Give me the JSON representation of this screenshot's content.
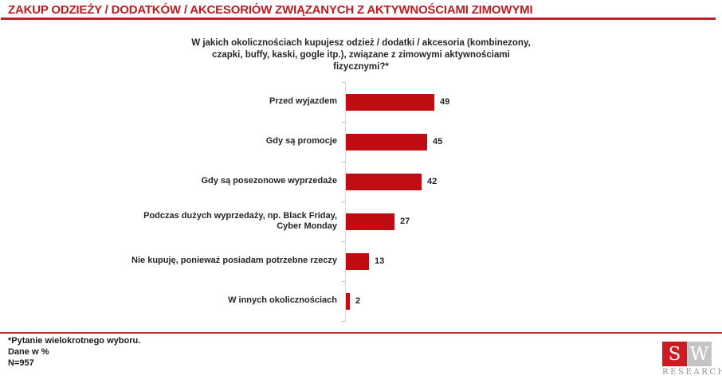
{
  "header": {
    "title": "ZAKUP ODZIEŻY / DODATKÓW / AKCESORIÓW ZWIĄZANYCH Z AKTYWNOŚCIAMI ZIMOWYMI",
    "accent_color": "#c11a21"
  },
  "question": {
    "text": "W jakich okolicznościach kupujesz odzież / dodatki / akcesoria (kombinezony, czapki, buffy, kaski, gogle itp.), związane z zimowymi aktywnościami fizycznymi?*"
  },
  "chart_data": {
    "type": "bar",
    "orientation": "horizontal",
    "title": "",
    "xlabel": "",
    "ylabel": "",
    "xlim": [
      0,
      55
    ],
    "grid": false,
    "legend": "none",
    "bar_color": "#c00c13",
    "axis_color": "#d9d9d9",
    "categories": [
      "Przed wyjazdem",
      "Gdy są promocje",
      "Gdy są posezonowe wyprzedaże",
      "Podczas dużych wyprzedaży, np. Black Friday, Cyber Monday",
      "Nie kupuję, ponieważ posiadam potrzebne rzeczy",
      "W innych okolicznościach"
    ],
    "values": [
      49,
      45,
      42,
      27,
      13,
      2
    ]
  },
  "footer": {
    "note1": "*Pytanie wielokrotnego wyboru.",
    "note2": "Dane w %",
    "note3": "N=957"
  },
  "logo": {
    "letter1": "S",
    "letter2": "W",
    "caption": "RESEARCH"
  }
}
